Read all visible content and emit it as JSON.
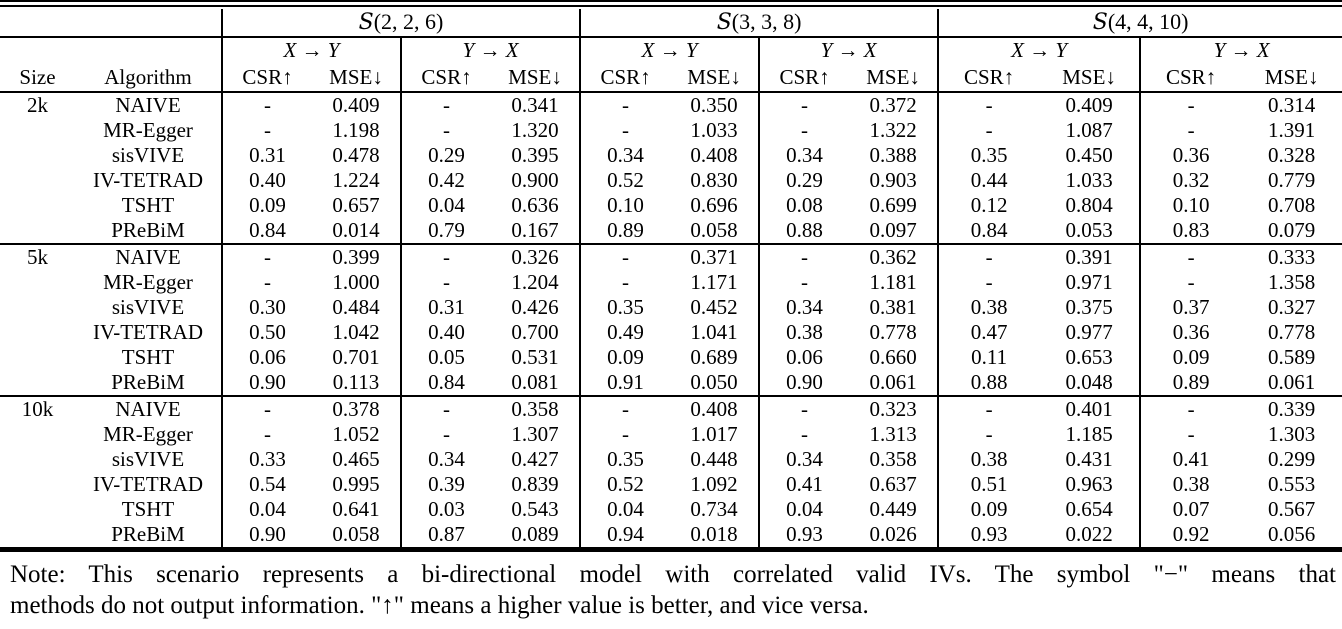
{
  "table": {
    "size_header": "Size",
    "algorithm_header": "Algorithm",
    "scenarios": [
      {
        "name": "S",
        "args": "(2, 2, 6)"
      },
      {
        "name": "S",
        "args": "(3, 3, 8)"
      },
      {
        "name": "S",
        "args": "(4, 4, 10)"
      }
    ],
    "direction_pair": {
      "xy": "X → Y",
      "yx": "Y → X"
    },
    "metric_pair": {
      "csr": "CSR↑",
      "mse": "MSE↓"
    },
    "groups": [
      {
        "size": "2k",
        "rows": [
          {
            "algorithm": "NAIVE",
            "bold": false,
            "values": [
              "-",
              "0.409",
              "-",
              "0.341",
              "-",
              "0.350",
              "-",
              "0.372",
              "-",
              "0.409",
              "-",
              "0.314"
            ]
          },
          {
            "algorithm": "MR-Egger",
            "bold": false,
            "values": [
              "-",
              "1.198",
              "-",
              "1.320",
              "-",
              "1.033",
              "-",
              "1.322",
              "-",
              "1.087",
              "-",
              "1.391"
            ]
          },
          {
            "algorithm": "sisVIVE",
            "bold": false,
            "values": [
              "0.31",
              "0.478",
              "0.29",
              "0.395",
              "0.34",
              "0.408",
              "0.34",
              "0.388",
              "0.35",
              "0.450",
              "0.36",
              "0.328"
            ]
          },
          {
            "algorithm": "IV-TETRAD",
            "bold": false,
            "values": [
              "0.40",
              "1.224",
              "0.42",
              "0.900",
              "0.52",
              "0.830",
              "0.29",
              "0.903",
              "0.44",
              "1.033",
              "0.32",
              "0.779"
            ]
          },
          {
            "algorithm": "TSHT",
            "bold": false,
            "values": [
              "0.09",
              "0.657",
              "0.04",
              "0.636",
              "0.10",
              "0.696",
              "0.08",
              "0.699",
              "0.12",
              "0.804",
              "0.10",
              "0.708"
            ]
          },
          {
            "algorithm": "PReBiM",
            "bold": true,
            "values": [
              "0.84",
              "0.014",
              "0.79",
              "0.167",
              "0.89",
              "0.058",
              "0.88",
              "0.097",
              "0.84",
              "0.053",
              "0.83",
              "0.079"
            ]
          }
        ]
      },
      {
        "size": "5k",
        "rows": [
          {
            "algorithm": "NAIVE",
            "bold": false,
            "values": [
              "-",
              "0.399",
              "-",
              "0.326",
              "-",
              "0.371",
              "-",
              "0.362",
              "-",
              "0.391",
              "-",
              "0.333"
            ]
          },
          {
            "algorithm": "MR-Egger",
            "bold": false,
            "values": [
              "-",
              "1.000",
              "-",
              "1.204",
              "-",
              "1.171",
              "-",
              "1.181",
              "-",
              "0.971",
              "-",
              "1.358"
            ]
          },
          {
            "algorithm": "sisVIVE",
            "bold": false,
            "values": [
              "0.30",
              "0.484",
              "0.31",
              "0.426",
              "0.35",
              "0.452",
              "0.34",
              "0.381",
              "0.38",
              "0.375",
              "0.37",
              "0.327"
            ]
          },
          {
            "algorithm": "IV-TETRAD",
            "bold": false,
            "values": [
              "0.50",
              "1.042",
              "0.40",
              "0.700",
              "0.49",
              "1.041",
              "0.38",
              "0.778",
              "0.47",
              "0.977",
              "0.36",
              "0.778"
            ]
          },
          {
            "algorithm": "TSHT",
            "bold": false,
            "values": [
              "0.06",
              "0.701",
              "0.05",
              "0.531",
              "0.09",
              "0.689",
              "0.06",
              "0.660",
              "0.11",
              "0.653",
              "0.09",
              "0.589"
            ]
          },
          {
            "algorithm": "PReBiM",
            "bold": true,
            "values": [
              "0.90",
              "0.113",
              "0.84",
              "0.081",
              "0.91",
              "0.050",
              "0.90",
              "0.061",
              "0.88",
              "0.048",
              "0.89",
              "0.061"
            ]
          }
        ]
      },
      {
        "size": "10k",
        "rows": [
          {
            "algorithm": "NAIVE",
            "bold": false,
            "values": [
              "-",
              "0.378",
              "-",
              "0.358",
              "-",
              "0.408",
              "-",
              "0.323",
              "-",
              "0.401",
              "-",
              "0.339"
            ]
          },
          {
            "algorithm": "MR-Egger",
            "bold": false,
            "values": [
              "-",
              "1.052",
              "-",
              "1.307",
              "-",
              "1.017",
              "-",
              "1.313",
              "-",
              "1.185",
              "-",
              "1.303"
            ]
          },
          {
            "algorithm": "sisVIVE",
            "bold": false,
            "values": [
              "0.33",
              "0.465",
              "0.34",
              "0.427",
              "0.35",
              "0.448",
              "0.34",
              "0.358",
              "0.38",
              "0.431",
              "0.41",
              "0.299"
            ]
          },
          {
            "algorithm": "IV-TETRAD",
            "bold": false,
            "values": [
              "0.54",
              "0.995",
              "0.39",
              "0.839",
              "0.52",
              "1.092",
              "0.41",
              "0.637",
              "0.51",
              "0.963",
              "0.38",
              "0.553"
            ]
          },
          {
            "algorithm": "TSHT",
            "bold": false,
            "values": [
              "0.04",
              "0.641",
              "0.03",
              "0.543",
              "0.04",
              "0.734",
              "0.04",
              "0.449",
              "0.09",
              "0.654",
              "0.07",
              "0.567"
            ]
          },
          {
            "algorithm": "PReBiM",
            "bold": true,
            "values": [
              "0.90",
              "0.058",
              "0.87",
              "0.089",
              "0.94",
              "0.018",
              "0.93",
              "0.026",
              "0.93",
              "0.022",
              "0.92",
              "0.056"
            ]
          }
        ]
      }
    ]
  },
  "note": {
    "line1": "Note: This scenario represents a bi-directional model with correlated valid IVs. The symbol \"−\" means that",
    "line2": "methods do not output information. \"↑\" means a higher value is better, and vice versa."
  }
}
